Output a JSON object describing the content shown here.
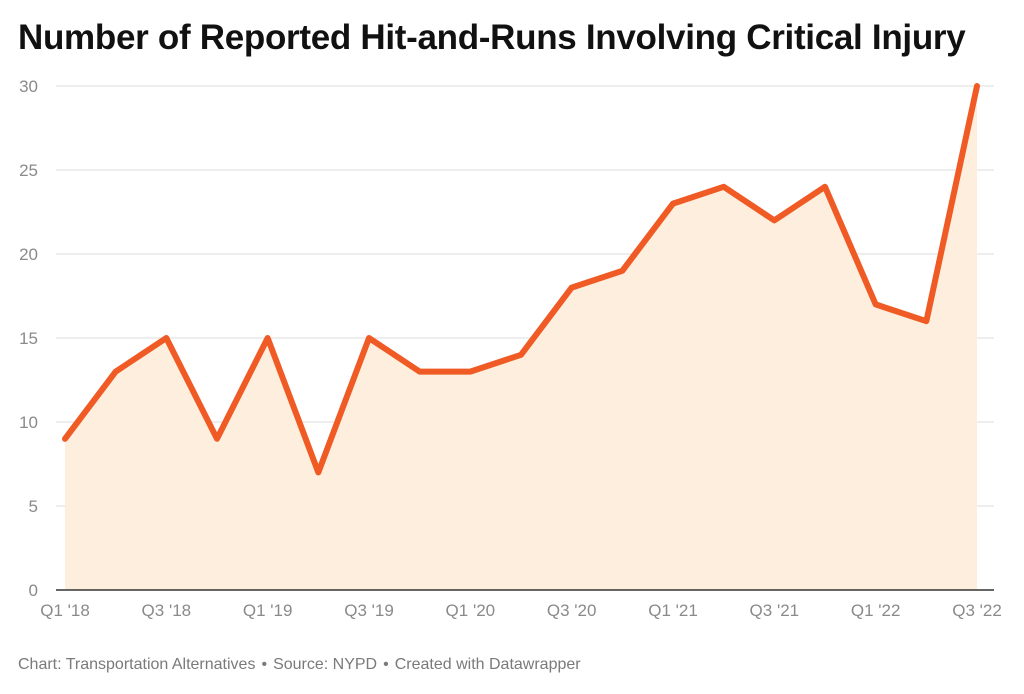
{
  "title": "Number of Reported Hit-and-Runs Involving Critical Injury",
  "footer": {
    "chart_credit": "Chart: Transportation Alternatives",
    "source": "Source: NYPD",
    "created": "Created with Datawrapper"
  },
  "colors": {
    "line": "#f05a24",
    "area": "#fdeedd",
    "grid": "#dddddd",
    "axis": "#333333",
    "tick_label": "#8a8a8a"
  },
  "chart_data": {
    "type": "area",
    "title": "Number of Reported Hit-and-Runs Involving Critical Injury",
    "x": [
      "Q1 '18",
      "Q2 '18",
      "Q3 '18",
      "Q4 '18",
      "Q1 '19",
      "Q2 '19",
      "Q3 '19",
      "Q4 '19",
      "Q1 '20",
      "Q2 '20",
      "Q3 '20",
      "Q4 '20",
      "Q1 '21",
      "Q2 '21",
      "Q3 '21",
      "Q4 '21",
      "Q1 '22",
      "Q2 '22",
      "Q3 '22"
    ],
    "x_tick_labels": [
      "Q1 '18",
      "Q3 '18",
      "Q1 '19",
      "Q3 '19",
      "Q1 '20",
      "Q3 '20",
      "Q1 '21",
      "Q3 '21",
      "Q1 '22",
      "Q3 '22"
    ],
    "values": [
      9,
      13,
      15,
      9,
      15,
      7,
      15,
      13,
      13,
      14,
      18,
      19,
      23,
      24,
      22,
      24,
      17,
      16,
      30
    ],
    "y_ticks": [
      0,
      5,
      10,
      15,
      20,
      25,
      30
    ],
    "ylim": [
      0,
      30
    ],
    "grid": true,
    "legend": "none"
  }
}
